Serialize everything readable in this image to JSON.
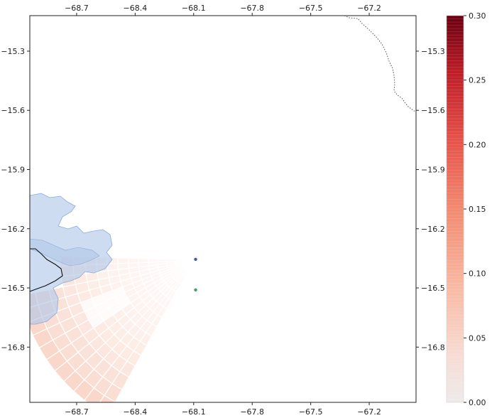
{
  "map": {
    "type": "radar-sector-map",
    "projection": "lon-lat",
    "xlim": [
      -68.94,
      -66.96
    ],
    "ylim": [
      -17.08,
      -15.12
    ],
    "x_ticks": [
      "-68.7",
      "-68.4",
      "-68.1",
      "-67.8",
      "-67.5",
      "-67.2"
    ],
    "x_tick_values": [
      -68.7,
      -68.4,
      -68.1,
      -67.8,
      -67.5,
      -67.2
    ],
    "y_ticks": [
      "-15.3",
      "-15.6",
      "-15.9",
      "-16.2",
      "-16.5",
      "-16.8"
    ],
    "y_tick_values": [
      -15.3,
      -15.6,
      -15.9,
      -16.2,
      -16.5,
      -16.8
    ],
    "grid": false,
    "sector": {
      "center": [
        -68.1,
        -16.36
      ],
      "direction": "northwest",
      "colormap": "Reds",
      "value_range": [
        0.0,
        0.3
      ]
    },
    "points": [
      {
        "name": "station-blue",
        "lon": -68.09,
        "lat": -16.355,
        "color": "#3a5fa6"
      },
      {
        "name": "station-green",
        "lon": -68.09,
        "lat": -16.51,
        "color": "#4a9a6a"
      }
    ],
    "lake": {
      "fill": "#aec6e8",
      "stroke": "#8aaad8"
    },
    "border_line": {
      "style": "dotted",
      "color": "#555555"
    },
    "region_line": {
      "style": "solid",
      "color": "#111111"
    }
  },
  "colorbar": {
    "ticks": [
      "0.00",
      "0.05",
      "0.10",
      "0.15",
      "0.20",
      "0.25",
      "0.30"
    ],
    "tick_values": [
      0.0,
      0.05,
      0.1,
      0.15,
      0.2,
      0.25,
      0.3
    ],
    "min": 0.0,
    "max": 0.3,
    "colormap": "Reds"
  }
}
